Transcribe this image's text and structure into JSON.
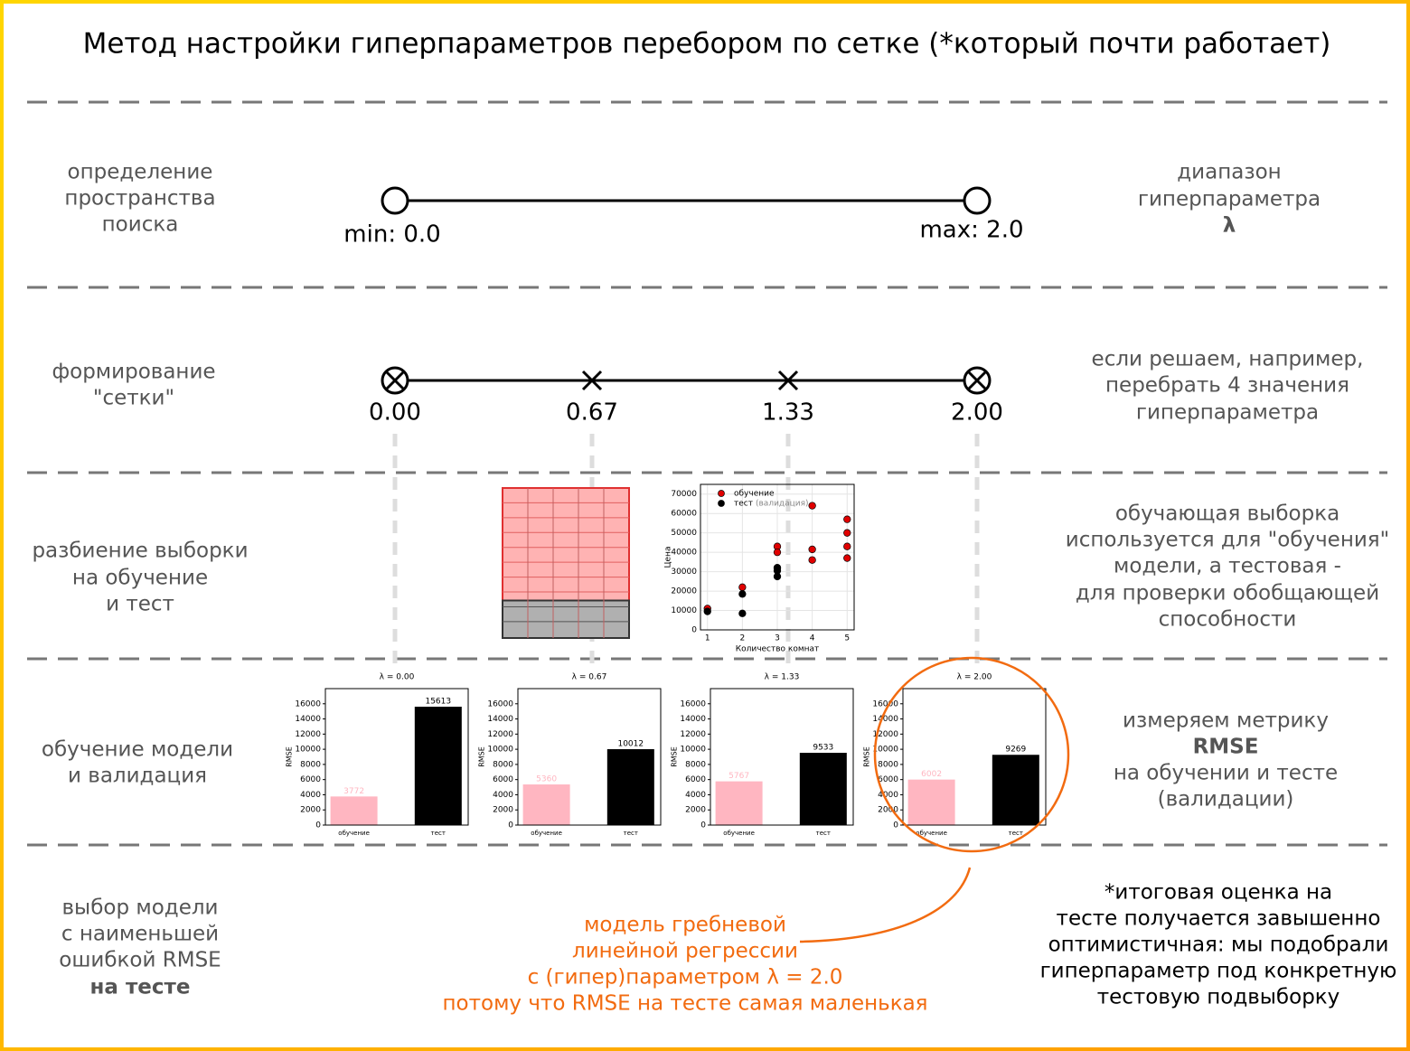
{
  "title": "Метод настройки гиперпараметров перебором по сетке (*который почти работает)",
  "rows": [
    {
      "label": [
        "определение",
        "пространства",
        "поиска"
      ],
      "note": [
        "диапазон",
        "гиперпараметра",
        "λ"
      ]
    },
    {
      "label": [
        "формирование",
        "\"сетки\""
      ],
      "note": [
        "если решаем, например,",
        "перебрать 4 значения",
        "гиперпараметра"
      ]
    },
    {
      "label": [
        "разбиение выборки",
        "на обучение",
        "и тест"
      ],
      "note": [
        "обучающая выборка",
        "используется для \"обучения\"",
        "модели, а тестовая -",
        "для проверки обобщающей",
        "способности"
      ]
    },
    {
      "label": [
        "обучение модели",
        "и валидация"
      ],
      "note": [
        "измеряем метрику",
        "RMSE",
        "на обучении и тесте",
        "(валидации)"
      ]
    },
    {
      "label": [
        "выбор модели",
        "с наименьшей",
        "ошибкой RMSE",
        "на тесте"
      ],
      "note": [
        "*итоговая оценка на",
        "тесте получается завышенно",
        "оптимистичная: мы подобрали",
        "гиперпараметр под конкретную",
        "тестовую подвыборку"
      ]
    }
  ],
  "range": {
    "min_label": "min: 0.0",
    "max_label": "max: 2.0"
  },
  "grid_values": [
    "0.00",
    "0.67",
    "1.33",
    "2.00"
  ],
  "scatter": {
    "type": "scatter",
    "xlabel": "Количество комнат",
    "ylabel": "Цена",
    "xlim": [
      0.8,
      5.2
    ],
    "ylim": [
      0,
      75000
    ],
    "xticks": [
      1,
      2,
      3,
      4,
      5
    ],
    "yticks": [
      0,
      10000,
      20000,
      30000,
      40000,
      50000,
      60000,
      70000
    ],
    "grid": true,
    "series": [
      {
        "name": "обучение",
        "color": "#e00000",
        "x": [
          1,
          2,
          3,
          3,
          3,
          4,
          4,
          4,
          5,
          5,
          5,
          5
        ],
        "values": [
          11000,
          22000,
          43000,
          40000,
          32000,
          64000,
          41500,
          36000,
          57000,
          50000,
          43000,
          37000
        ]
      },
      {
        "name": "тест",
        "name_note": "(валидация)",
        "color": "#000000",
        "x": [
          1,
          2,
          2,
          3,
          3,
          3
        ],
        "values": [
          9500,
          18500,
          8500,
          32000,
          30500,
          27500
        ]
      }
    ]
  },
  "bar_charts": {
    "type": "bar",
    "ylabel": "RMSE",
    "categories": [
      "обучение",
      "тест"
    ],
    "colors": [
      "#ffb6c1",
      "#000000"
    ],
    "ylim": [
      0,
      18000
    ],
    "yticks": [
      0,
      2000,
      4000,
      6000,
      8000,
      10000,
      12000,
      14000,
      16000
    ],
    "charts": [
      {
        "title": "λ = 0.00",
        "values": [
          3772,
          15613
        ]
      },
      {
        "title": "λ = 0.67",
        "values": [
          5360,
          10012
        ]
      },
      {
        "title": "λ = 1.33",
        "values": [
          5767,
          9533
        ]
      },
      {
        "title": "λ = 2.00",
        "values": [
          6002,
          9269
        ]
      }
    ]
  },
  "conclusion": [
    "модель гребневой",
    "линейной регрессии",
    "с (гипер)параметром λ = 2.0",
    "потому что RMSE на тесте самая маленькая"
  ]
}
